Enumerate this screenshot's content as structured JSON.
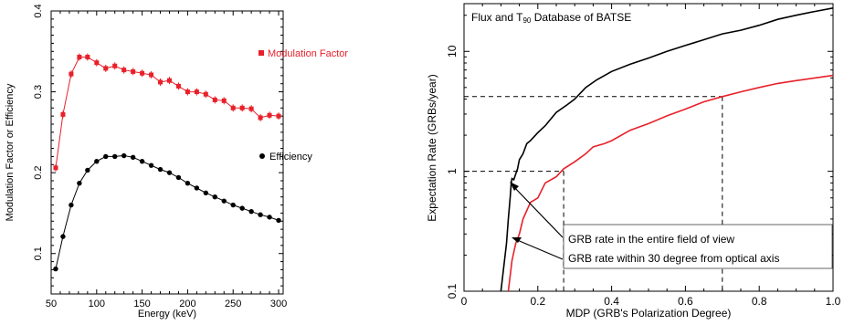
{
  "colors": {
    "red": "#e8202a",
    "black": "#000000"
  },
  "chart_data": [
    {
      "type": "line",
      "xlabel": "Energy (keV)",
      "ylabel": "Modulation Factor or Efficiency",
      "xlim": [
        50,
        305
      ],
      "ylim": [
        0.05,
        0.4
      ],
      "xticks": [
        50,
        100,
        150,
        200,
        250,
        300
      ],
      "yticks": [
        0.1,
        0.2,
        0.3,
        0.4
      ],
      "ytick_labels": [
        "0.1",
        "0.2",
        "0.3",
        "0.4"
      ],
      "series": [
        {
          "name": "Modulation Factor",
          "color": "#e8202a",
          "marker": "square",
          "x": [
            55,
            63,
            72,
            81,
            90,
            100,
            110,
            120,
            130,
            140,
            150,
            160,
            170,
            180,
            190,
            200,
            210,
            220,
            230,
            240,
            250,
            260,
            270,
            280,
            290,
            300
          ],
          "y": [
            0.206,
            0.272,
            0.322,
            0.343,
            0.343,
            0.336,
            0.329,
            0.332,
            0.327,
            0.325,
            0.323,
            0.321,
            0.312,
            0.314,
            0.307,
            0.3,
            0.3,
            0.297,
            0.29,
            0.289,
            0.28,
            0.28,
            0.279,
            0.268,
            0.271,
            0.27
          ]
        },
        {
          "name": "Efficiency",
          "color": "#000000",
          "marker": "circle",
          "x": [
            55,
            63,
            72,
            81,
            90,
            100,
            110,
            120,
            130,
            140,
            150,
            160,
            170,
            180,
            190,
            200,
            210,
            220,
            230,
            240,
            250,
            260,
            270,
            280,
            290,
            300
          ],
          "y": [
            0.081,
            0.121,
            0.16,
            0.187,
            0.203,
            0.214,
            0.22,
            0.22,
            0.221,
            0.219,
            0.214,
            0.209,
            0.204,
            0.2,
            0.194,
            0.187,
            0.181,
            0.175,
            0.17,
            0.165,
            0.16,
            0.156,
            0.152,
            0.148,
            0.145,
            0.141
          ]
        }
      ]
    },
    {
      "type": "line",
      "title": "Flux and T",
      "title_sub": "90",
      "title_rest": " Database of BATSE",
      "xlabel": "MDP (GRB's Polarization Degree)",
      "ylabel": "Expectation Rate (GRBs/year)",
      "xlim": [
        0,
        1
      ],
      "ylim": [
        0.1,
        25
      ],
      "yscale": "log",
      "xticks": [
        0,
        0.2,
        0.4,
        0.6,
        0.8,
        1.0
      ],
      "xtick_labels": [
        "0",
        "0.2",
        "0.4",
        "0.6",
        "0.8",
        "1.0"
      ],
      "yticks": [
        0.1,
        1,
        10
      ],
      "ytick_labels": [
        "0.1",
        "1",
        "10"
      ],
      "series": [
        {
          "name": "GRB rate in the entire field of view",
          "color": "#000000",
          "x": [
            0.1,
            0.115,
            0.12,
            0.125,
            0.128,
            0.13,
            0.135,
            0.14,
            0.145,
            0.15,
            0.16,
            0.17,
            0.18,
            0.2,
            0.22,
            0.25,
            0.28,
            0.3,
            0.33,
            0.36,
            0.4,
            0.45,
            0.5,
            0.55,
            0.6,
            0.65,
            0.7,
            0.75,
            0.8,
            0.85,
            0.9,
            0.95,
            1.0
          ],
          "y": [
            0.1,
            0.25,
            0.4,
            0.6,
            0.8,
            0.87,
            0.85,
            0.95,
            1.05,
            1.25,
            1.4,
            1.7,
            1.8,
            2.1,
            2.4,
            3.1,
            3.6,
            4.0,
            5.0,
            5.8,
            6.8,
            7.8,
            8.8,
            10.0,
            11.2,
            12.5,
            14.0,
            15.0,
            16.5,
            18.5,
            20.0,
            21.5,
            23.0
          ]
        },
        {
          "name": "GRB rate within 30 degree from optical axis",
          "color": "#e8202a",
          "x": [
            0.12,
            0.13,
            0.14,
            0.15,
            0.16,
            0.18,
            0.2,
            0.22,
            0.25,
            0.27,
            0.3,
            0.33,
            0.35,
            0.38,
            0.4,
            0.45,
            0.5,
            0.55,
            0.6,
            0.65,
            0.7,
            0.75,
            0.8,
            0.85,
            0.9,
            0.95,
            1.0
          ],
          "y": [
            0.1,
            0.18,
            0.25,
            0.3,
            0.4,
            0.55,
            0.6,
            0.8,
            0.9,
            1.05,
            1.2,
            1.4,
            1.6,
            1.7,
            1.8,
            2.2,
            2.5,
            2.9,
            3.3,
            3.8,
            4.2,
            4.6,
            5.0,
            5.4,
            5.7,
            6.0,
            6.3
          ]
        }
      ],
      "guides": [
        {
          "x": 0.27,
          "y": 1.0
        },
        {
          "x": 0.7,
          "y": 4.2
        }
      ]
    }
  ]
}
